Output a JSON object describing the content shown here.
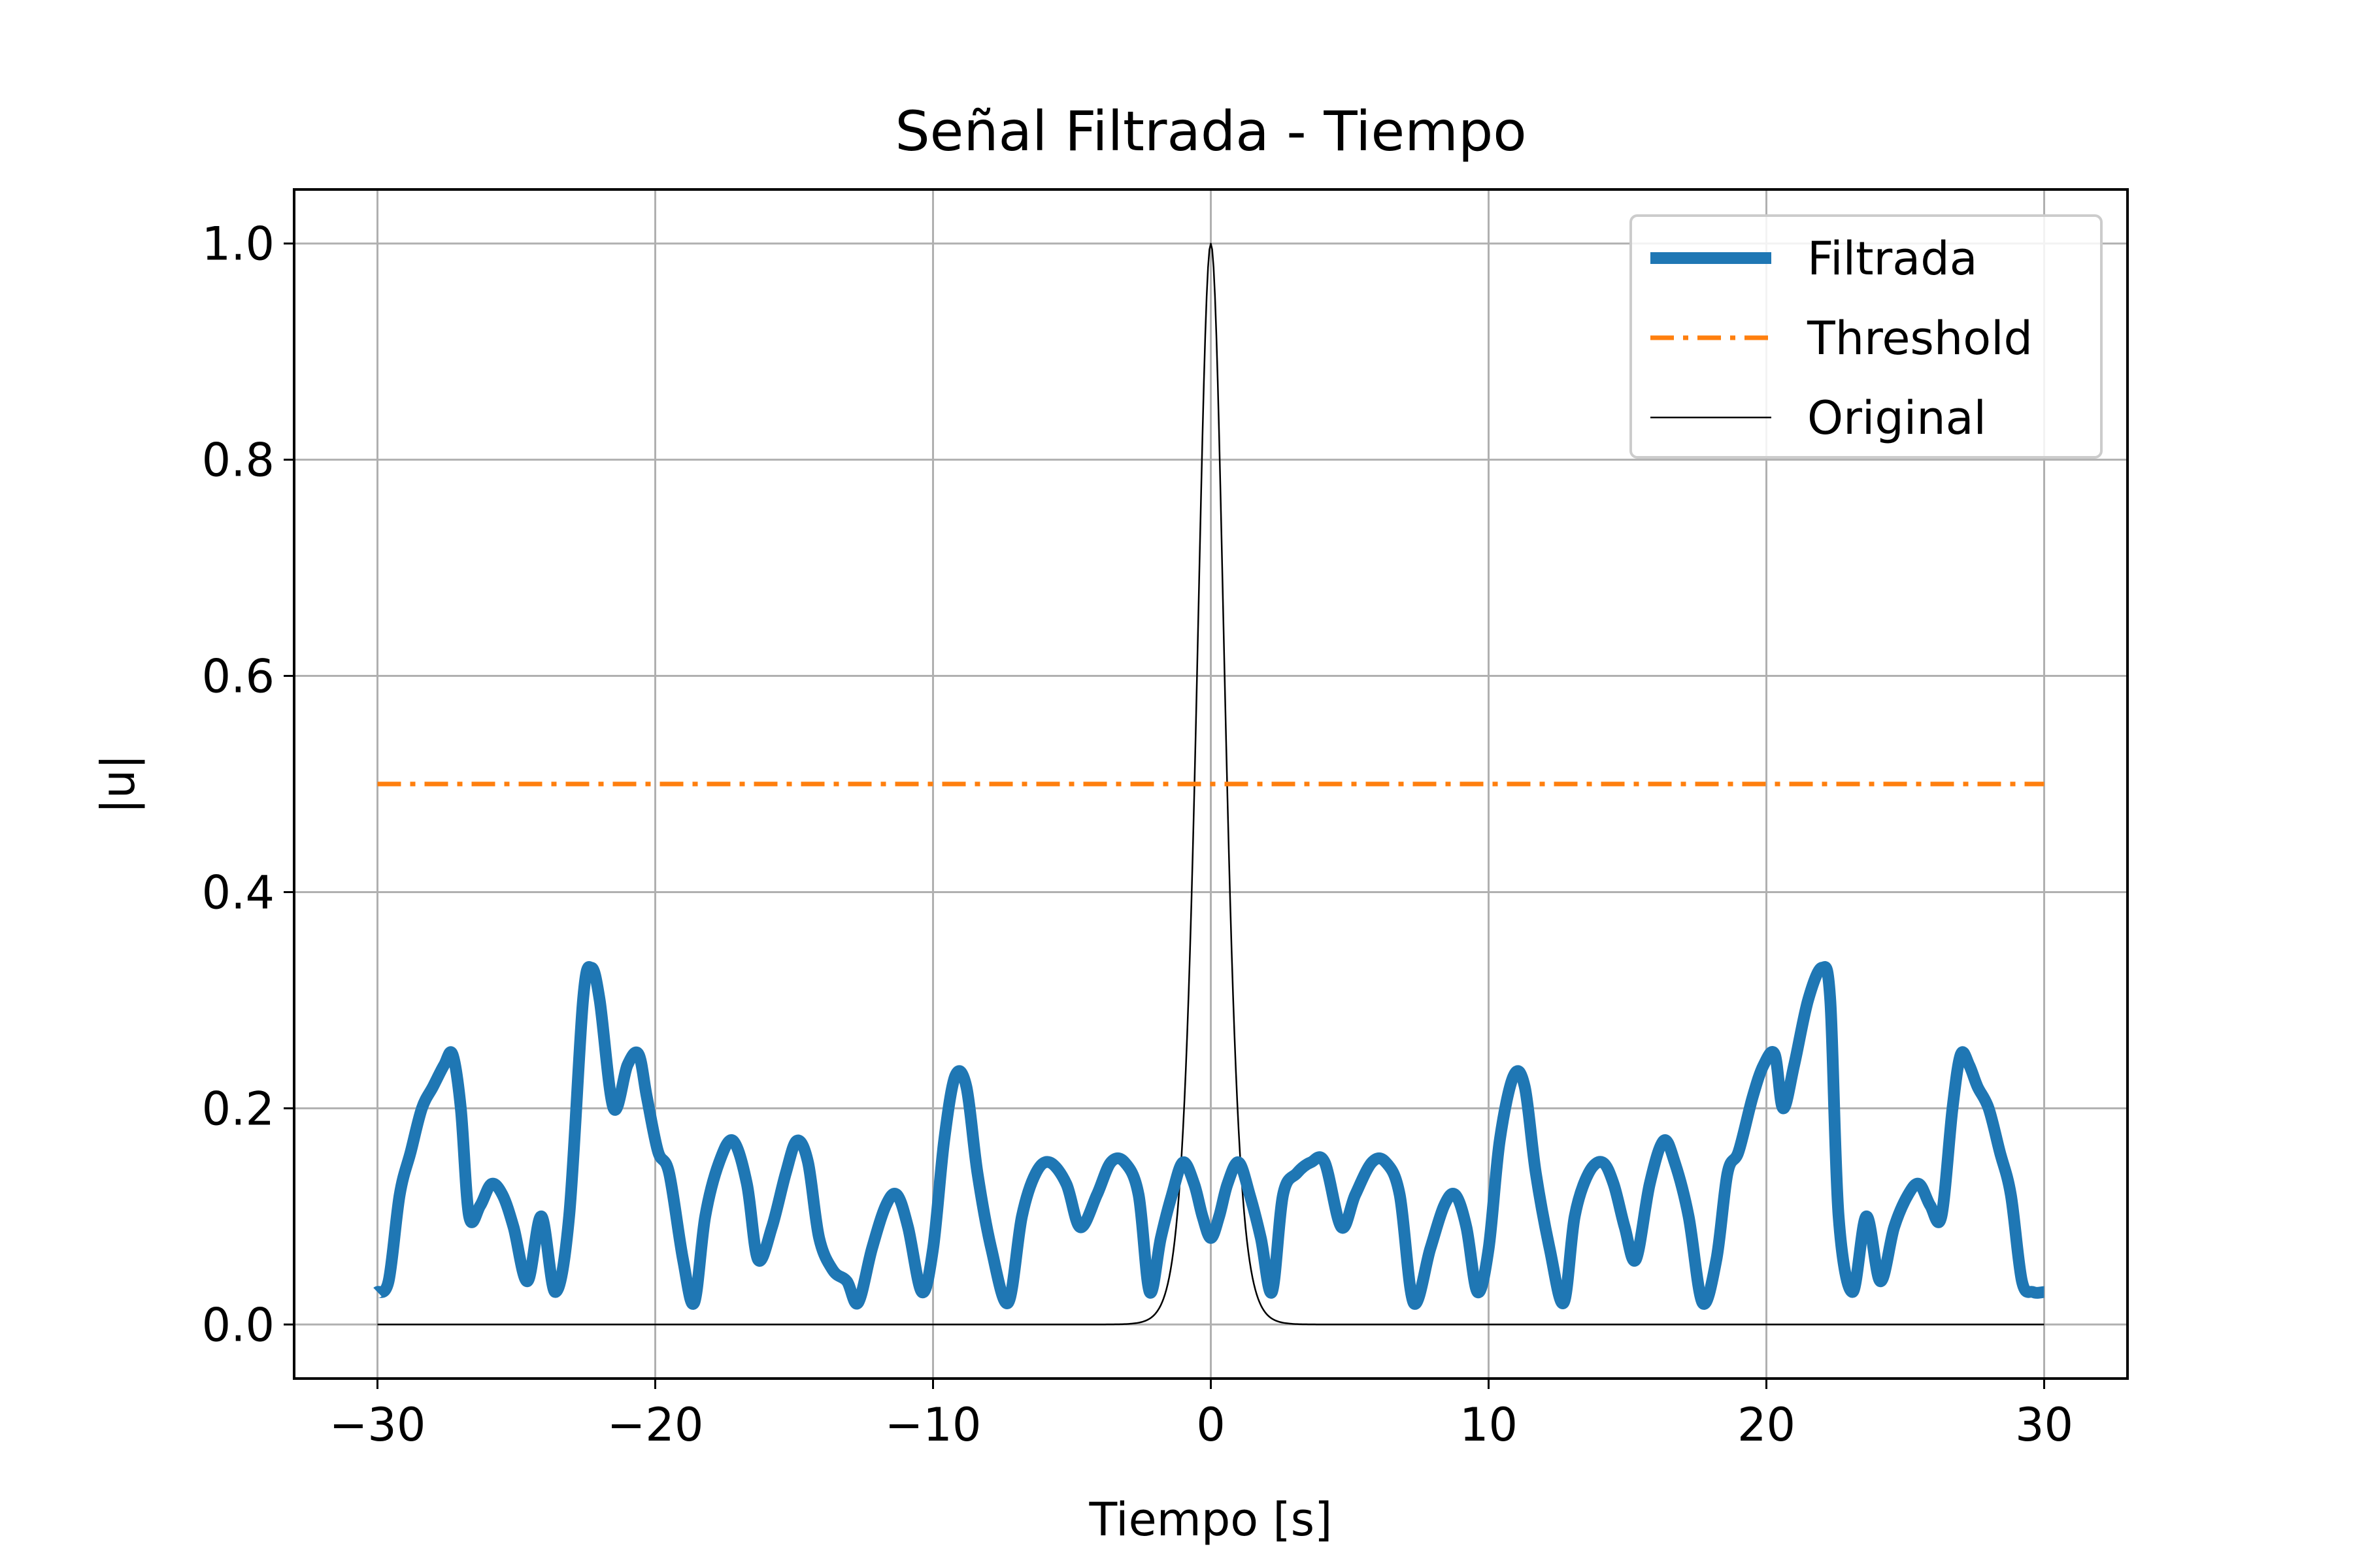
{
  "chart_data": {
    "type": "line",
    "title": "Señal Filtrada - Tiempo",
    "xlabel": "Tiempo [s]",
    "ylabel": "|u|",
    "xlim": [
      -33,
      33
    ],
    "ylim": [
      -0.05,
      1.05
    ],
    "x_ticks": [
      -30,
      -20,
      -10,
      0,
      10,
      20,
      30
    ],
    "x_tick_labels": [
      "−30",
      "−20",
      "−10",
      "0",
      "10",
      "20",
      "30"
    ],
    "y_ticks": [
      0.0,
      0.2,
      0.4,
      0.6,
      0.8,
      1.0
    ],
    "y_tick_labels": [
      "0.0",
      "0.2",
      "0.4",
      "0.6",
      "0.8",
      "1.0"
    ],
    "grid": true,
    "legend_position": "top-right",
    "series": [
      {
        "name": "Filtrada",
        "color": "#1f77b4",
        "style": "solid-thick",
        "x": [
          -30,
          -29.6,
          -29.2,
          -28.8,
          -28.4,
          -28,
          -27.6,
          -27.3,
          -27,
          -26.7,
          -26.3,
          -25.9,
          -25.5,
          -25.1,
          -24.6,
          -24.1,
          -23.6,
          -23.1,
          -22.6,
          -22.3,
          -22,
          -21.5,
          -21.0,
          -20.6,
          -20.3,
          -19.9,
          -19.5,
          -19.0,
          -18.6,
          -18.2,
          -17.7,
          -17.2,
          -16.7,
          -16.3,
          -15.8,
          -15.3,
          -14.9,
          -14.5,
          -14.1,
          -13.6,
          -13.1,
          -12.7,
          -12.2,
          -11.7,
          -11.3,
          -10.9,
          -10.4,
          -10.0,
          -9.6,
          -9.2,
          -8.8,
          -8.4,
          -7.9,
          -7.3,
          -6.8,
          -6.3,
          -5.8,
          -5.2,
          -4.7,
          -4.1,
          -3.6,
          -3.1,
          -2.6,
          -2.2,
          -1.8,
          -1.4,
          -1.0,
          -0.6,
          -0.3,
          0.0,
          0.3,
          0.6,
          1.0,
          1.4,
          1.8,
          2.2,
          2.6,
          3.1,
          3.6,
          4.1,
          4.7,
          5.2,
          5.8,
          6.3,
          6.8,
          7.3,
          7.9,
          8.4,
          8.8,
          9.2,
          9.6,
          10.0,
          10.4,
          10.9,
          11.3,
          11.7,
          12.2,
          12.7,
          13.1,
          13.6,
          14.1,
          14.5,
          14.9,
          15.3,
          15.8,
          16.3,
          16.7,
          17.2,
          17.7,
          18.2,
          18.6,
          19.0,
          19.5,
          19.9,
          20.3,
          20.6,
          21.0,
          21.5,
          22.0,
          22.3,
          22.6,
          23.1,
          23.6,
          24.1,
          24.6,
          25.1,
          25.5,
          25.9,
          26.3,
          26.7,
          27.0,
          27.3,
          27.6,
          28.0,
          28.4,
          28.8,
          29.2,
          29.6,
          30
        ],
        "y": [
          0.03,
          0.04,
          0.12,
          0.16,
          0.2,
          0.22,
          0.24,
          0.25,
          0.2,
          0.1,
          0.11,
          0.13,
          0.12,
          0.09,
          0.04,
          0.1,
          0.03,
          0.1,
          0.3,
          0.33,
          0.3,
          0.2,
          0.24,
          0.25,
          0.21,
          0.16,
          0.14,
          0.06,
          0.02,
          0.1,
          0.15,
          0.17,
          0.13,
          0.06,
          0.09,
          0.14,
          0.17,
          0.15,
          0.08,
          0.05,
          0.04,
          0.02,
          0.07,
          0.11,
          0.12,
          0.09,
          0.03,
          0.07,
          0.17,
          0.23,
          0.22,
          0.14,
          0.07,
          0.02,
          0.1,
          0.14,
          0.15,
          0.13,
          0.09,
          0.12,
          0.15,
          0.15,
          0.12,
          0.03,
          0.08,
          0.12,
          0.15,
          0.13,
          0.1,
          0.08,
          0.1,
          0.13,
          0.15,
          0.12,
          0.08,
          0.03,
          0.12,
          0.14,
          0.15,
          0.15,
          0.09,
          0.12,
          0.15,
          0.15,
          0.12,
          0.02,
          0.07,
          0.11,
          0.12,
          0.09,
          0.03,
          0.07,
          0.17,
          0.23,
          0.22,
          0.14,
          0.07,
          0.02,
          0.1,
          0.14,
          0.15,
          0.13,
          0.09,
          0.06,
          0.13,
          0.17,
          0.15,
          0.1,
          0.02,
          0.06,
          0.14,
          0.16,
          0.21,
          0.24,
          0.25,
          0.2,
          0.24,
          0.3,
          0.33,
          0.3,
          0.1,
          0.03,
          0.1,
          0.04,
          0.09,
          0.12,
          0.13,
          0.11,
          0.1,
          0.2,
          0.25,
          0.24,
          0.22,
          0.2,
          0.16,
          0.12,
          0.04,
          0.03,
          0.03
        ]
      },
      {
        "name": "Threshold",
        "color": "#ff7f0e",
        "style": "dashdot",
        "x": [
          -30,
          30
        ],
        "y": [
          0.5,
          0.5
        ]
      },
      {
        "name": "Original",
        "color": "#000000",
        "style": "solid-thin",
        "function": "sech(1.5*t)^2",
        "x_range": [
          -30,
          30
        ]
      }
    ]
  }
}
